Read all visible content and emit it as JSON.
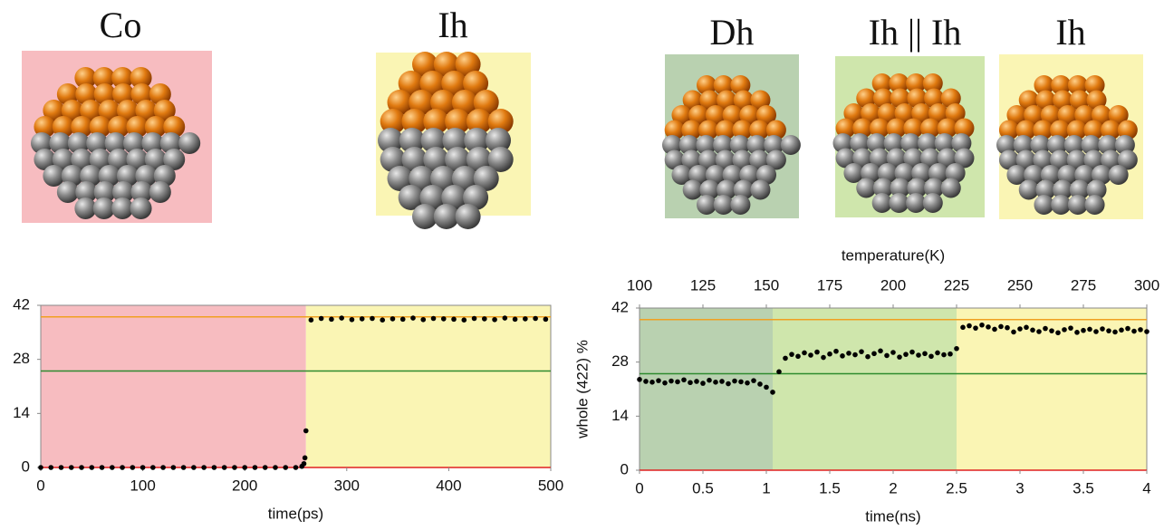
{
  "structures": [
    "Co",
    "Ih",
    "Dh",
    "Ih || Ih",
    "Ih"
  ],
  "chart_data": [
    {
      "type": "scatter",
      "xlabel": "time(ps)",
      "xlim": [
        0,
        500
      ],
      "xticks": [
        0,
        100,
        200,
        300,
        400,
        500
      ],
      "ylim": [
        0,
        42
      ],
      "yticks": [
        0,
        14,
        28,
        42
      ],
      "regions": [
        {
          "from": 0,
          "to": 260,
          "color": "#f7bcc0"
        },
        {
          "from": 260,
          "to": 500,
          "color": "#faf5b4"
        }
      ],
      "hlines": [
        {
          "value": 39,
          "color": "#f0a020"
        },
        {
          "value": 25,
          "color": "#2e8b2e"
        },
        {
          "value": 0,
          "color": "#e02020"
        }
      ],
      "series": [
        {
          "color": "#000000",
          "x": [
            0,
            10,
            20,
            30,
            40,
            50,
            60,
            70,
            80,
            90,
            100,
            110,
            120,
            130,
            140,
            150,
            160,
            170,
            180,
            190,
            200,
            210,
            220,
            230,
            240,
            250,
            256,
            258,
            259,
            260,
            265,
            275,
            285,
            295,
            305,
            315,
            325,
            335,
            345,
            355,
            365,
            375,
            385,
            395,
            405,
            415,
            425,
            435,
            445,
            455,
            465,
            475,
            485,
            495
          ],
          "values": [
            0,
            0,
            0,
            0,
            0,
            0,
            0,
            0,
            0,
            0,
            0,
            0,
            0,
            0,
            0,
            0,
            0,
            0,
            0,
            0,
            0,
            0,
            0,
            0,
            0,
            0,
            0.3,
            1,
            2.5,
            9.5,
            38.2,
            38.6,
            38.4,
            38.7,
            38.3,
            38.5,
            38.6,
            38.2,
            38.5,
            38.4,
            38.7,
            38.3,
            38.6,
            38.5,
            38.4,
            38.2,
            38.6,
            38.5,
            38.3,
            38.7,
            38.4,
            38.5,
            38.6,
            38.4
          ]
        }
      ]
    },
    {
      "type": "scatter",
      "xlabel": "time(ns)",
      "ylabel": "whole (422) %",
      "x2label": "temperature(K)",
      "xlim": [
        0,
        4
      ],
      "xticks": [
        0,
        0.5,
        1,
        1.5,
        2,
        2.5,
        3,
        3.5,
        4
      ],
      "x2lim": [
        100,
        300
      ],
      "x2ticks": [
        100,
        125,
        150,
        175,
        200,
        225,
        250,
        275,
        300
      ],
      "ylim": [
        0,
        42
      ],
      "yticks": [
        0,
        14,
        28,
        42
      ],
      "regions": [
        {
          "from": 0,
          "to": 1.05,
          "color": "#b9d1b0"
        },
        {
          "from": 1.05,
          "to": 2.5,
          "color": "#cfe6ac"
        },
        {
          "from": 2.5,
          "to": 4,
          "color": "#faf5b4"
        }
      ],
      "hlines": [
        {
          "value": 39,
          "color": "#f0a020"
        },
        {
          "value": 25,
          "color": "#2e8b2e"
        },
        {
          "value": 0,
          "color": "#e02020"
        }
      ],
      "series": [
        {
          "color": "#000000",
          "x": [
            0,
            0.05,
            0.1,
            0.15,
            0.2,
            0.25,
            0.3,
            0.35,
            0.4,
            0.45,
            0.5,
            0.55,
            0.6,
            0.65,
            0.7,
            0.75,
            0.8,
            0.85,
            0.9,
            0.95,
            1,
            1.05,
            1.1,
            1.15,
            1.2,
            1.25,
            1.3,
            1.35,
            1.4,
            1.45,
            1.5,
            1.55,
            1.6,
            1.65,
            1.7,
            1.75,
            1.8,
            1.85,
            1.9,
            1.95,
            2,
            2.05,
            2.1,
            2.15,
            2.2,
            2.25,
            2.3,
            2.35,
            2.4,
            2.45,
            2.5,
            2.55,
            2.6,
            2.65,
            2.7,
            2.75,
            2.8,
            2.85,
            2.9,
            2.95,
            3,
            3.05,
            3.1,
            3.15,
            3.2,
            3.25,
            3.3,
            3.35,
            3.4,
            3.45,
            3.5,
            3.55,
            3.6,
            3.65,
            3.7,
            3.75,
            3.8,
            3.85,
            3.9,
            3.95,
            4
          ],
          "values": [
            23.5,
            23,
            22.8,
            23.2,
            22.6,
            23.1,
            22.9,
            23.4,
            22.7,
            23,
            22.5,
            23.3,
            22.8,
            23,
            22.4,
            23.1,
            22.9,
            22.6,
            23.2,
            22.3,
            21.5,
            20.2,
            25.5,
            29,
            30,
            29.5,
            30.4,
            29.8,
            30.6,
            29.2,
            30.1,
            30.8,
            29.6,
            30.3,
            29.9,
            30.7,
            29.4,
            30.2,
            30.9,
            29.7,
            30.5,
            29.3,
            30,
            30.6,
            29.8,
            30.2,
            29.5,
            30.4,
            29.9,
            30.1,
            31.5,
            37,
            37.4,
            36.8,
            37.6,
            37.1,
            36.5,
            37.2,
            36.9,
            35.8,
            36.6,
            37,
            36.3,
            35.9,
            36.7,
            36.1,
            35.6,
            36.4,
            36.8,
            35.7,
            36.2,
            36.5,
            35.9,
            36.6,
            36.1,
            35.8,
            36.3,
            36.7,
            36,
            36.4,
            35.9
          ]
        }
      ]
    }
  ]
}
